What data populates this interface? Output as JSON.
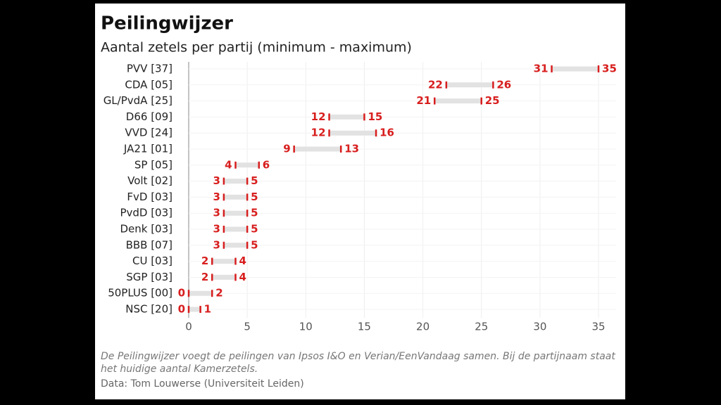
{
  "chart_data": {
    "type": "range",
    "title": "Peilingwijzer",
    "subtitle": "Aantal zetels per partij (minimum - maximum)",
    "categories": [
      "PVV [37]",
      "CDA [05]",
      "GL/PvdA [25]",
      "D66 [09]",
      "VVD [24]",
      "JA21 [01]",
      "SP [05]",
      "Volt [02]",
      "FvD [03]",
      "PvdD [03]",
      "Denk [03]",
      "BBB [07]",
      "CU [03]",
      "SGP [03]",
      "50PLUS [00]",
      "NSC [20]"
    ],
    "low": [
      31,
      22,
      21,
      12,
      12,
      9,
      4,
      3,
      3,
      3,
      3,
      3,
      2,
      2,
      0,
      0
    ],
    "high": [
      35,
      26,
      25,
      15,
      16,
      13,
      6,
      5,
      5,
      5,
      5,
      5,
      4,
      4,
      2,
      1
    ],
    "color": "#d81e1e",
    "range_color": "#e2e2e2",
    "xlim": [
      0,
      36.5
    ],
    "xticks": [
      0,
      5,
      10,
      15,
      20,
      25,
      30,
      35
    ],
    "grid": true,
    "note": "De Peilingwijzer voegt de peilingen van Ipsos I&O en Verian/EenVandaag samen. Bij de partijnaam staat het huidige aantal Kamerzetels.",
    "source": "Data: Tom Louwerse (Universiteit Leiden)"
  }
}
